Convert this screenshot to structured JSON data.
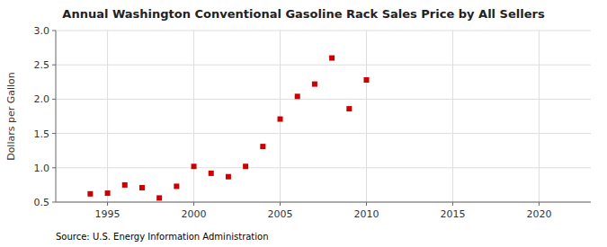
{
  "chart_data": {
    "type": "scatter",
    "title": "Annual Washington Conventional Gasoline Rack Sales Price by All Sellers",
    "y_label": "Dollars per Gallon",
    "annotation": "Source: U.S. Energy Information Administration",
    "x": [
      1994,
      1995,
      1996,
      1997,
      1998,
      1999,
      2000,
      2001,
      2002,
      2003,
      2004,
      2005,
      2006,
      2007,
      2008,
      2009,
      2010
    ],
    "values": [
      0.62,
      0.63,
      0.75,
      0.71,
      0.56,
      0.73,
      1.02,
      0.92,
      0.87,
      1.02,
      1.31,
      1.71,
      2.04,
      2.22,
      2.6,
      1.86,
      2.28
    ],
    "color": "#cc0000",
    "marker": "square",
    "grid": true,
    "xlim": [
      1992,
      2023
    ],
    "ylim": [
      0.5,
      3.0
    ],
    "xticks": [
      1995,
      2000,
      2005,
      2010,
      2015,
      2020
    ],
    "yticks": [
      0.5,
      {
        "value": 1.0,
        "label": "1.0"
      },
      1.5,
      {
        "value": 2.0,
        "label": "2.0"
      },
      2.5,
      {
        "value": 3.0,
        "label": "3.0"
      }
    ]
  }
}
